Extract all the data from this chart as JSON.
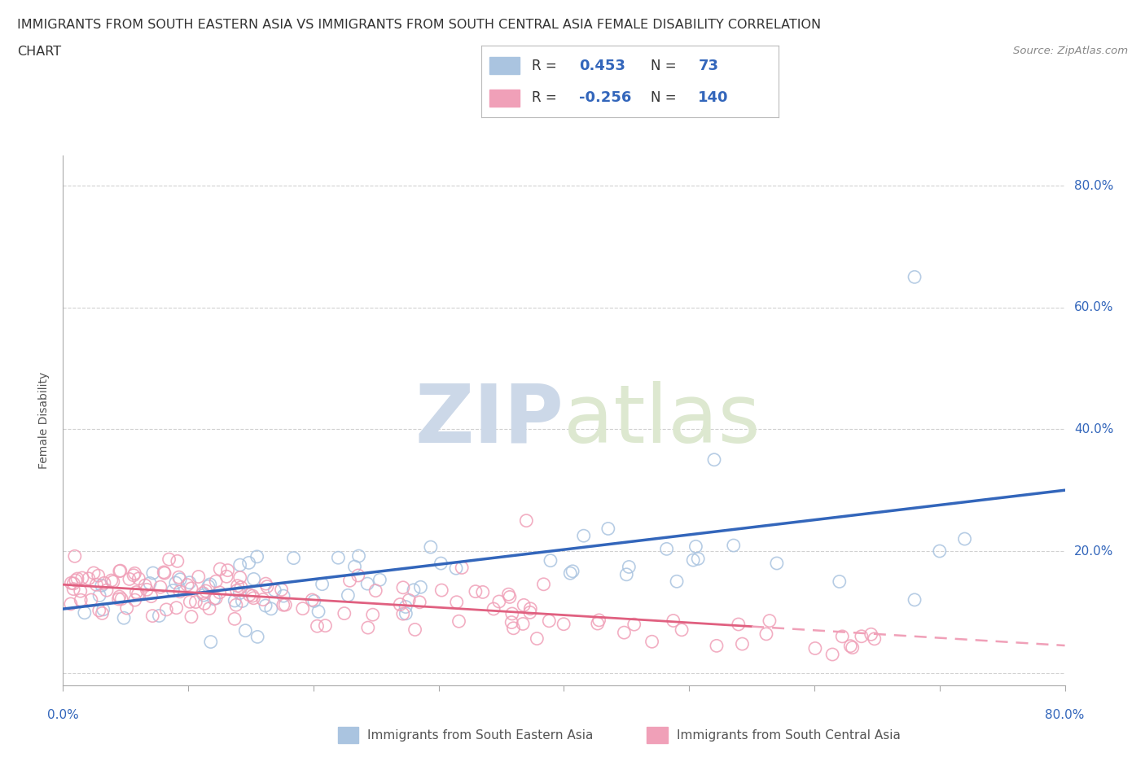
{
  "title_line1": "IMMIGRANTS FROM SOUTH EASTERN ASIA VS IMMIGRANTS FROM SOUTH CENTRAL ASIA FEMALE DISABILITY CORRELATION",
  "title_line2": "CHART",
  "source_text": "Source: ZipAtlas.com",
  "ylabel": "Female Disability",
  "r1": 0.453,
  "n1": 73,
  "r2": -0.256,
  "n2": 140,
  "color_blue": "#aac4e0",
  "color_pink": "#f0a0b8",
  "color_blue_dark": "#3366bb",
  "color_pink_dark": "#e06080",
  "line_color_blue": "#3366bb",
  "line_color_pink": "#e06080",
  "watermark_zip": "ZIP",
  "watermark_atlas": "atlas",
  "watermark_color": "#ccd8e8",
  "legend1": "Immigrants from South Eastern Asia",
  "legend2": "Immigrants from South Central Asia",
  "background_color": "#ffffff",
  "grid_color": "#cccccc",
  "text_color_dark": "#333333",
  "text_color_blue": "#3366bb",
  "axis_color": "#aaaaaa",
  "title_fontsize": 11.5,
  "legend_fontsize": 11,
  "tick_fontsize": 11,
  "ylabel_fontsize": 10,
  "blue_line_start_y": 10.5,
  "blue_line_end_y": 30.0,
  "pink_line_start_y": 14.5,
  "pink_line_end_y": 4.5,
  "pink_solid_end_x": 55,
  "xlim": [
    0,
    80
  ],
  "ylim": [
    -2,
    85
  ]
}
